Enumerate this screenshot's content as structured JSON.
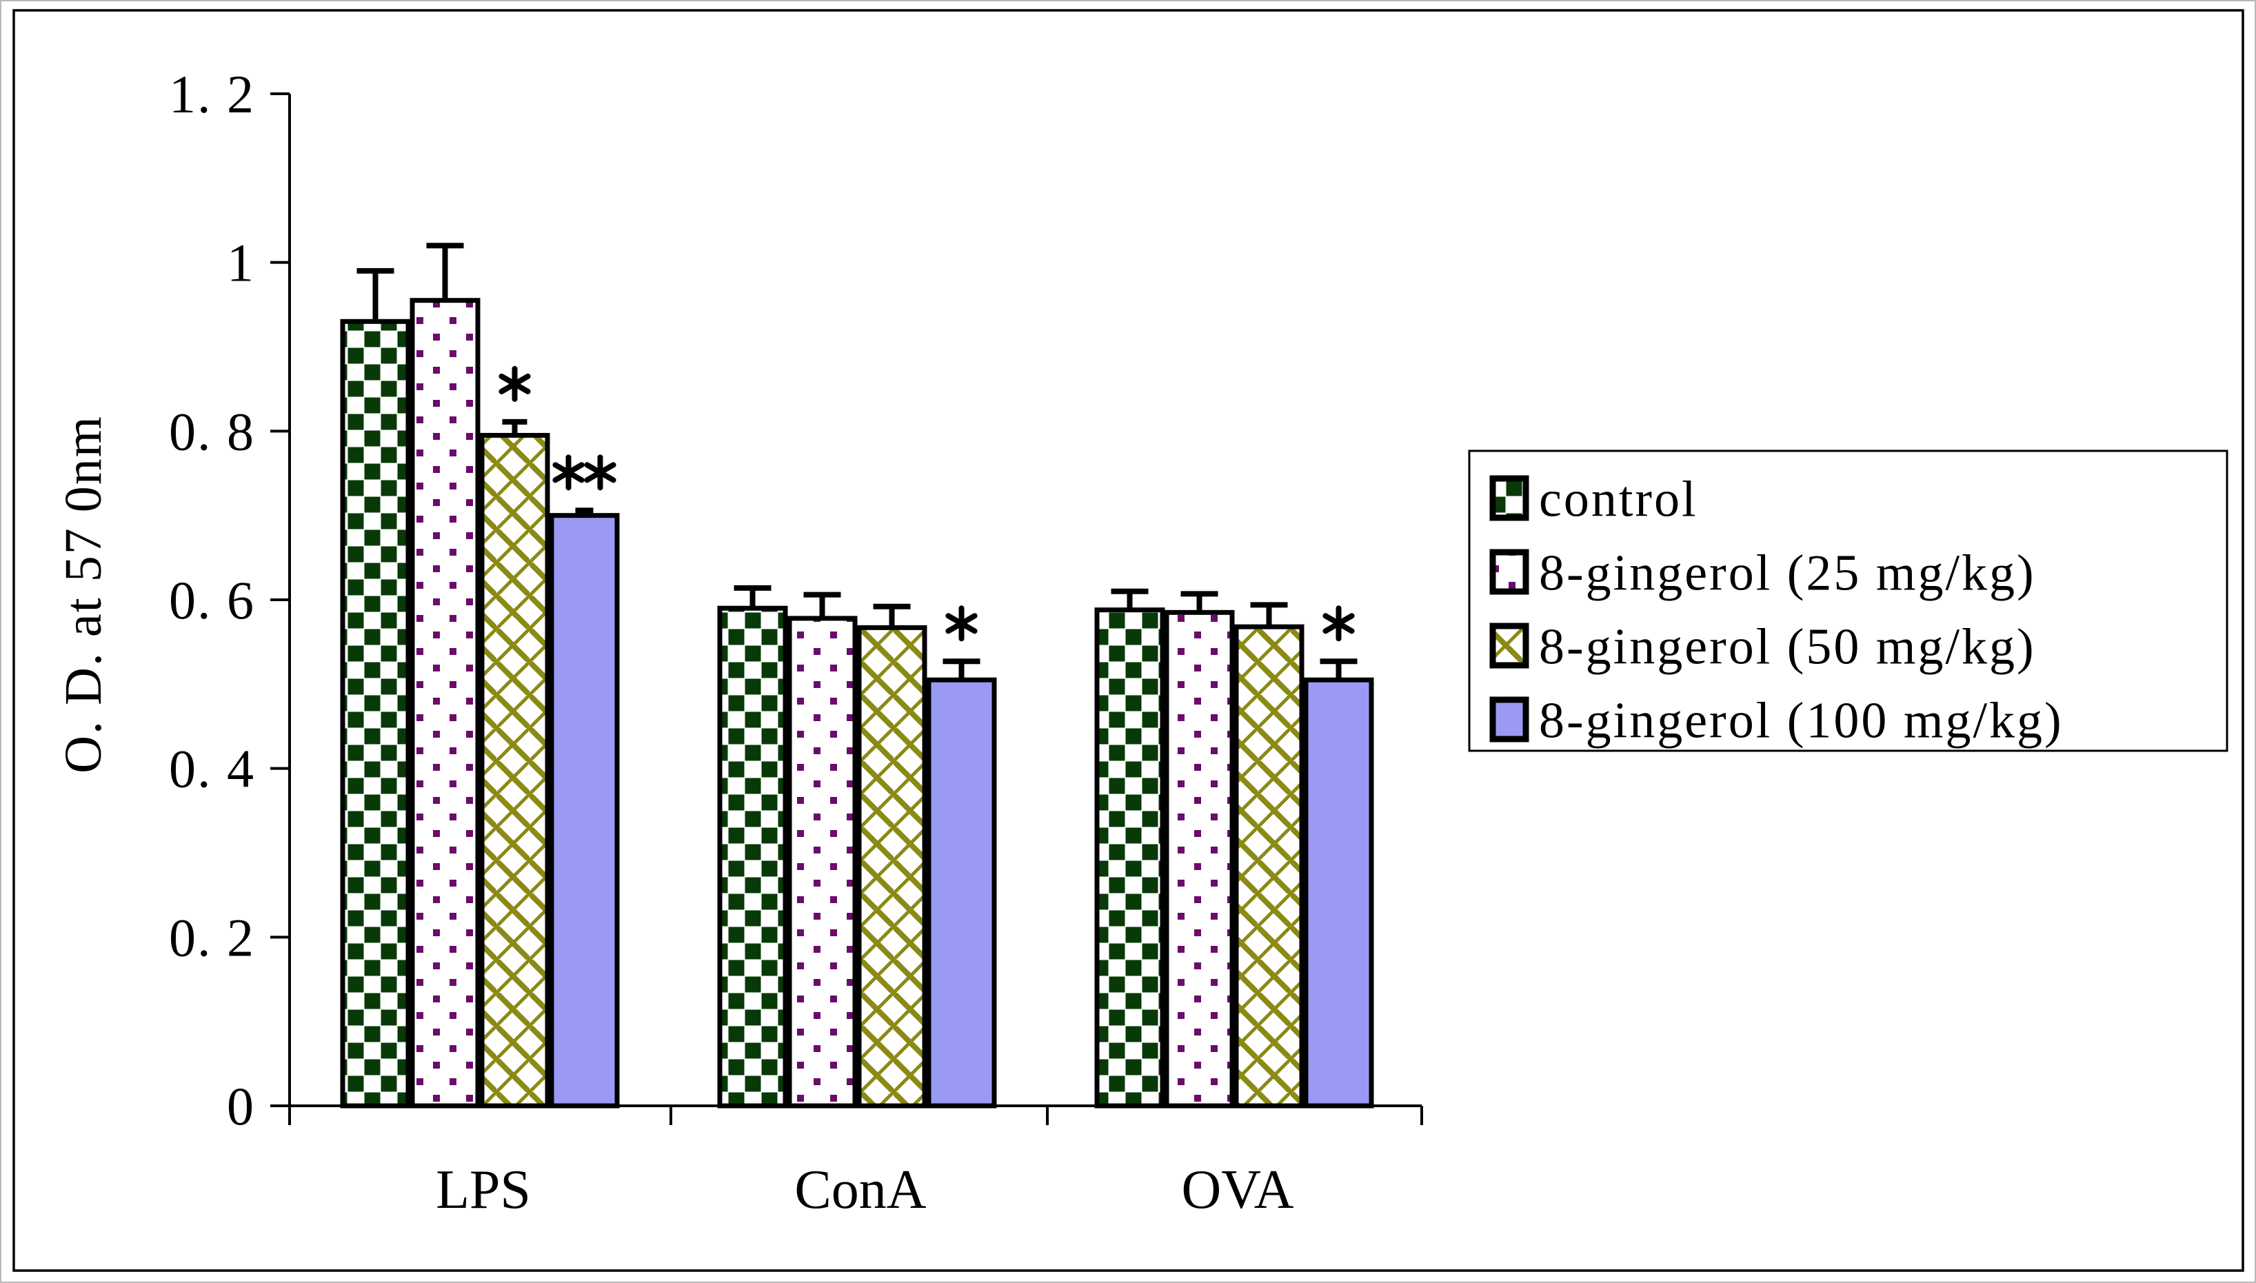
{
  "figure": {
    "background": "#ffffff",
    "border_color": "#000000"
  },
  "chart_data": {
    "type": "bar",
    "title": "",
    "xlabel": "",
    "ylabel": "O. D. at 57 0nm",
    "ylim": [
      0,
      1.2
    ],
    "grid": false,
    "legend_position": "right",
    "categories": [
      "LPS",
      "ConA",
      "OVA"
    ],
    "yticks": [
      {
        "label": "1. 2",
        "value": 1.2
      },
      {
        "label": "1",
        "value": 1.0
      },
      {
        "label": "0. 8",
        "value": 0.8
      },
      {
        "label": "0. 6",
        "value": 0.6
      },
      {
        "label": "0. 4",
        "value": 0.4
      },
      {
        "label": "0. 2",
        "value": 0.2
      },
      {
        "label": "0",
        "value": 0.0
      }
    ],
    "series": [
      {
        "name": "control",
        "pattern": "checker",
        "color": "#083a08",
        "values": [
          0.93,
          0.59,
          0.588
        ],
        "errors": [
          0.06,
          0.024,
          0.022
        ]
      },
      {
        "name": "8-gingerol (25 mg/kg)",
        "pattern": "dots",
        "color": "#6b0b6b",
        "values": [
          0.955,
          0.578,
          0.585
        ],
        "errors": [
          0.065,
          0.028,
          0.022
        ]
      },
      {
        "name": "8-gingerol (50 mg/kg)",
        "pattern": "trellis",
        "color": "#8a8a15",
        "values": [
          0.795,
          0.567,
          0.568
        ],
        "errors": [
          0.016,
          0.025,
          0.026
        ]
      },
      {
        "name": "8-gingerol (100 mg/kg)",
        "pattern": "solid",
        "color": "#9a9af5",
        "values": [
          0.7,
          0.505,
          0.505
        ],
        "errors": [
          0.006,
          0.022,
          0.022
        ]
      }
    ],
    "annotations": [
      {
        "category": "LPS",
        "series_index": 2,
        "text": "*"
      },
      {
        "category": "LPS",
        "series_index": 3,
        "text": "**"
      },
      {
        "category": "ConA",
        "series_index": 3,
        "text": "*"
      },
      {
        "category": "OVA",
        "series_index": 3,
        "text": "*"
      }
    ]
  }
}
